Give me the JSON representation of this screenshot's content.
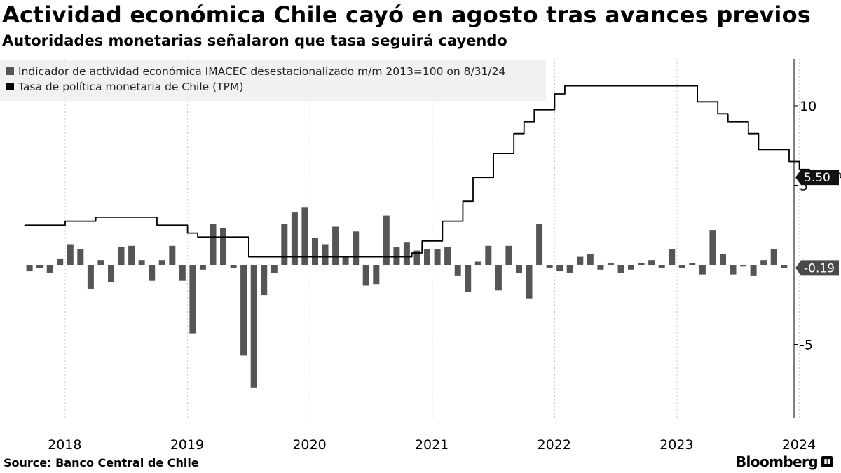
{
  "header": {
    "title": "Actividad económica Chile cayó en agosto tras avances previos",
    "subtitle": "Autoridades monetarias señalaron que tasa seguirá cayendo"
  },
  "footer": {
    "source": "Source:  Banco Central de Chile",
    "brand": "Bloomberg",
    "brand_icon": "bloomberg-terminal-icon"
  },
  "colors": {
    "bars": "#555555",
    "line": "#000000",
    "tag_bg": "#111111",
    "tag_bar_bg": "#4a4a4a"
  },
  "chart_data": {
    "type": "bar+line",
    "title": "Actividad económica Chile cayó en agosto tras avances previos",
    "subtitle": "Autoridades monetarias señalaron que tasa seguirá cayendo",
    "x_start": "2017-09",
    "x_end": "2024-09",
    "year_ticks": [
      "2018",
      "2019",
      "2020",
      "2021",
      "2022",
      "2023",
      "2024"
    ],
    "y_ticks": [
      10,
      5,
      -5
    ],
    "y_tick_labels": [
      "10",
      "5",
      "-5"
    ],
    "ylim": [
      -9.5,
      13
    ],
    "grid": "vertical dashed at each year start",
    "legend_position": "top-left",
    "series": [
      {
        "name": "Indicador de actividad económica IMACEC desestacionalizado m/m 2013=100 on 8/31/24",
        "kind": "bar",
        "start": "2017-09",
        "values": [
          -0.4,
          -0.2,
          -0.5,
          0.4,
          1.3,
          1.0,
          -1.5,
          0.3,
          -1.1,
          1.1,
          1.2,
          0.3,
          -1.0,
          0.3,
          1.2,
          -1.0,
          -4.3,
          -0.3,
          2.6,
          2.3,
          -0.2,
          -5.7,
          -7.7,
          -1.9,
          -0.5,
          2.6,
          3.3,
          3.6,
          1.7,
          1.3,
          2.4,
          0.5,
          2.1,
          -1.3,
          -1.2,
          3.1,
          1.1,
          1.4,
          0.9,
          1.0,
          1.0,
          1.1,
          -0.7,
          -1.7,
          0.2,
          1.2,
          -1.6,
          1.2,
          -0.5,
          -2.1,
          2.6,
          -0.2,
          -0.4,
          -0.5,
          0.5,
          0.7,
          -0.3,
          0.1,
          -0.5,
          -0.3,
          0.1,
          0.3,
          -0.2,
          1.0,
          -0.2,
          0.1,
          -0.6,
          2.2,
          0.7,
          -0.6,
          -0.1,
          -0.7,
          0.3,
          1.0,
          -0.19
        ]
      },
      {
        "name": "Tasa de política monetaria de Chile (TPM)",
        "kind": "line",
        "start": "2017-09",
        "values": [
          2.5,
          2.5,
          2.5,
          2.5,
          2.75,
          2.75,
          2.75,
          3.0,
          3.0,
          3.0,
          3.0,
          3.0,
          3.0,
          2.5,
          2.5,
          2.5,
          2.0,
          1.75,
          1.75,
          1.75,
          1.75,
          1.75,
          0.5,
          0.5,
          0.5,
          0.5,
          0.5,
          0.5,
          0.5,
          0.5,
          0.5,
          0.5,
          0.5,
          0.5,
          0.5,
          0.5,
          0.5,
          0.5,
          0.75,
          1.5,
          1.5,
          2.75,
          2.75,
          4.0,
          5.5,
          5.5,
          7.0,
          7.0,
          8.25,
          9.0,
          9.75,
          9.75,
          10.75,
          11.25,
          11.25,
          11.25,
          11.25,
          11.25,
          11.25,
          11.25,
          11.25,
          11.25,
          11.25,
          11.25,
          11.25,
          11.25,
          10.25,
          10.25,
          9.5,
          9.0,
          9.0,
          8.25,
          7.25,
          7.25,
          7.25,
          6.5,
          6.0,
          5.75,
          5.75,
          5.75,
          5.5
        ]
      }
    ],
    "last_value_labels": [
      {
        "series": "line",
        "text": "5.50",
        "value": 5.5
      },
      {
        "series": "bar",
        "text": "-0.19",
        "value": -0.19
      }
    ]
  }
}
